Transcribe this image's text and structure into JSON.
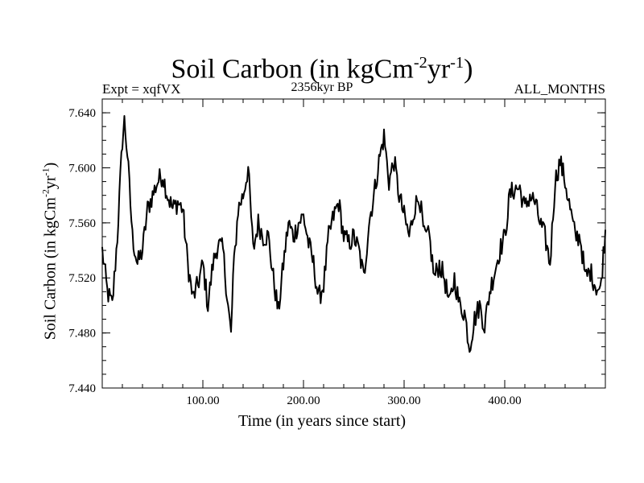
{
  "chart_data": {
    "type": "line",
    "title": {
      "main": "Soil Carbon (in kgCm",
      "exp1": "-2",
      "mid": "yr",
      "exp2": "-1",
      "close": ")"
    },
    "subtitle_left": "Expt = xqfVX",
    "subtitle_center": "2356kyr BP",
    "subtitle_right": "ALL_MONTHS",
    "xlabel": "Time (in years since start)",
    "ylabel": {
      "main": "Soil Carbon (in kgCm",
      "exp1": "-2",
      "mid": "yr",
      "exp2": "-1",
      "close": ")"
    },
    "xlim": [
      0,
      500
    ],
    "ylim": [
      7.44,
      7.65
    ],
    "x_ticks": [
      100,
      200,
      300,
      400
    ],
    "x_tick_labels": [
      "100.00",
      "200.00",
      "300.00",
      "400.00"
    ],
    "y_ticks": [
      7.44,
      7.48,
      7.52,
      7.56,
      7.6,
      7.64
    ],
    "y_tick_labels": [
      "7.440",
      "7.480",
      "7.520",
      "7.560",
      "7.600",
      "7.640"
    ],
    "series": [
      {
        "name": "Soil Carbon",
        "color": "#000000",
        "x": [
          0,
          5,
          10,
          15,
          20,
          22,
          25,
          30,
          35,
          40,
          45,
          50,
          55,
          60,
          65,
          70,
          75,
          80,
          85,
          90,
          95,
          100,
          105,
          110,
          115,
          120,
          125,
          128,
          130,
          135,
          140,
          145,
          150,
          155,
          160,
          165,
          170,
          175,
          180,
          185,
          190,
          195,
          200,
          205,
          210,
          215,
          220,
          225,
          230,
          235,
          240,
          245,
          250,
          255,
          260,
          265,
          270,
          275,
          280,
          285,
          290,
          295,
          300,
          305,
          310,
          315,
          320,
          325,
          330,
          335,
          340,
          345,
          350,
          355,
          360,
          365,
          370,
          375,
          380,
          385,
          390,
          395,
          400,
          405,
          410,
          415,
          420,
          425,
          430,
          435,
          440,
          445,
          450,
          455,
          460,
          465,
          470,
          475,
          480,
          485,
          490,
          495,
          500
        ],
        "values": [
          7.54,
          7.51,
          7.5,
          7.55,
          7.62,
          7.634,
          7.61,
          7.55,
          7.53,
          7.54,
          7.57,
          7.58,
          7.59,
          7.595,
          7.58,
          7.57,
          7.575,
          7.57,
          7.53,
          7.505,
          7.515,
          7.53,
          7.5,
          7.53,
          7.545,
          7.54,
          7.5,
          7.478,
          7.52,
          7.57,
          7.58,
          7.6,
          7.54,
          7.56,
          7.55,
          7.55,
          7.52,
          7.495,
          7.53,
          7.56,
          7.55,
          7.56,
          7.565,
          7.545,
          7.53,
          7.505,
          7.515,
          7.55,
          7.565,
          7.575,
          7.55,
          7.545,
          7.55,
          7.54,
          7.52,
          7.56,
          7.58,
          7.605,
          7.623,
          7.59,
          7.605,
          7.58,
          7.565,
          7.55,
          7.57,
          7.58,
          7.55,
          7.55,
          7.52,
          7.53,
          7.52,
          7.5,
          7.52,
          7.5,
          7.495,
          7.47,
          7.49,
          7.5,
          7.485,
          7.51,
          7.525,
          7.54,
          7.55,
          7.58,
          7.585,
          7.585,
          7.57,
          7.58,
          7.575,
          7.56,
          7.55,
          7.53,
          7.59,
          7.605,
          7.59,
          7.57,
          7.55,
          7.55,
          7.52,
          7.525,
          7.515,
          7.51,
          7.555
        ]
      }
    ]
  }
}
